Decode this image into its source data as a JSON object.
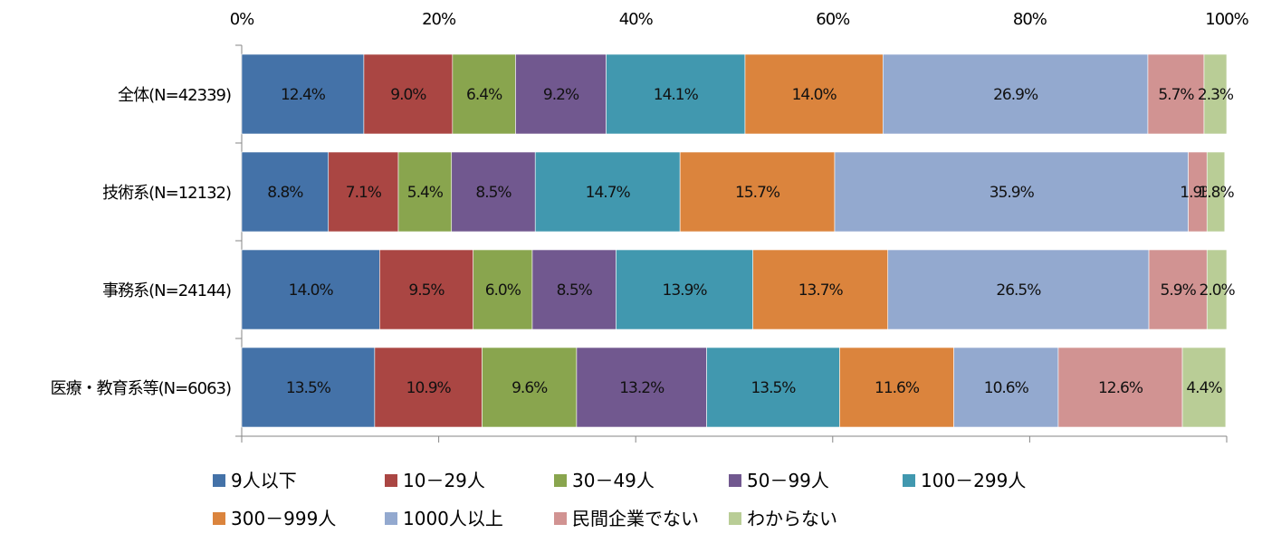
{
  "chart_data": {
    "type": "bar",
    "orientation": "horizontal",
    "stacked": "percent",
    "categories": [
      "全体(N=42339)",
      "技術系(N=12132)",
      "事務系(N=24144)",
      "医療・教育系等(N=6063)"
    ],
    "series": [
      {
        "name": "9人以下",
        "color": "#4472a8",
        "values": [
          12.4,
          8.8,
          14.0,
          13.5
        ],
        "labels": [
          "12.4%",
          "8.8%",
          "14.0%",
          "13.5%"
        ]
      },
      {
        "name": "10－29人",
        "color": "#aa4643",
        "values": [
          9.0,
          7.1,
          9.5,
          10.9
        ],
        "labels": [
          "9.0%",
          "7.1%",
          "9.5%",
          "10.9%"
        ]
      },
      {
        "name": "30－49人",
        "color": "#89a54e",
        "values": [
          6.4,
          5.4,
          6.0,
          9.6
        ],
        "labels": [
          "6.4%",
          "5.4%",
          "6.0%",
          "9.6%"
        ]
      },
      {
        "name": "50－99人",
        "color": "#71588f",
        "values": [
          9.2,
          8.5,
          8.5,
          13.2
        ],
        "labels": [
          "9.2%",
          "8.5%",
          "8.5%",
          "13.2%"
        ]
      },
      {
        "name": "100－299人",
        "color": "#4198af",
        "values": [
          14.1,
          14.7,
          13.9,
          13.5
        ],
        "labels": [
          "14.1%",
          "14.7%",
          "13.9%",
          "13.5%"
        ]
      },
      {
        "name": "300－999人",
        "color": "#db843d",
        "values": [
          14.0,
          15.7,
          13.7,
          11.6
        ],
        "labels": [
          "14.0%",
          "15.7%",
          "13.7%",
          "11.6%"
        ]
      },
      {
        "name": "1000人以上",
        "color": "#93a9cf",
        "values": [
          26.9,
          35.9,
          26.5,
          10.6
        ],
        "labels": [
          "26.9%",
          "35.9%",
          "26.5%",
          "10.6%"
        ]
      },
      {
        "name": "民間企業でない",
        "color": "#d19392",
        "values": [
          5.7,
          1.9,
          5.9,
          12.6
        ],
        "labels": [
          "5.7%",
          "1.9%",
          "5.9%",
          "12.6%"
        ]
      },
      {
        "name": "わからない",
        "color": "#b9cd96",
        "values": [
          2.3,
          1.8,
          2.0,
          4.4
        ],
        "labels": [
          "2.3%",
          "1.8%",
          "2.0%",
          "4.4%"
        ]
      }
    ],
    "x_ticks": [
      "0%",
      "20%",
      "40%",
      "60%",
      "80%",
      "100%"
    ],
    "xlim": [
      0,
      100
    ],
    "title": "",
    "xlabel": "",
    "ylabel": "",
    "grid": false,
    "legend_position": "bottom"
  }
}
